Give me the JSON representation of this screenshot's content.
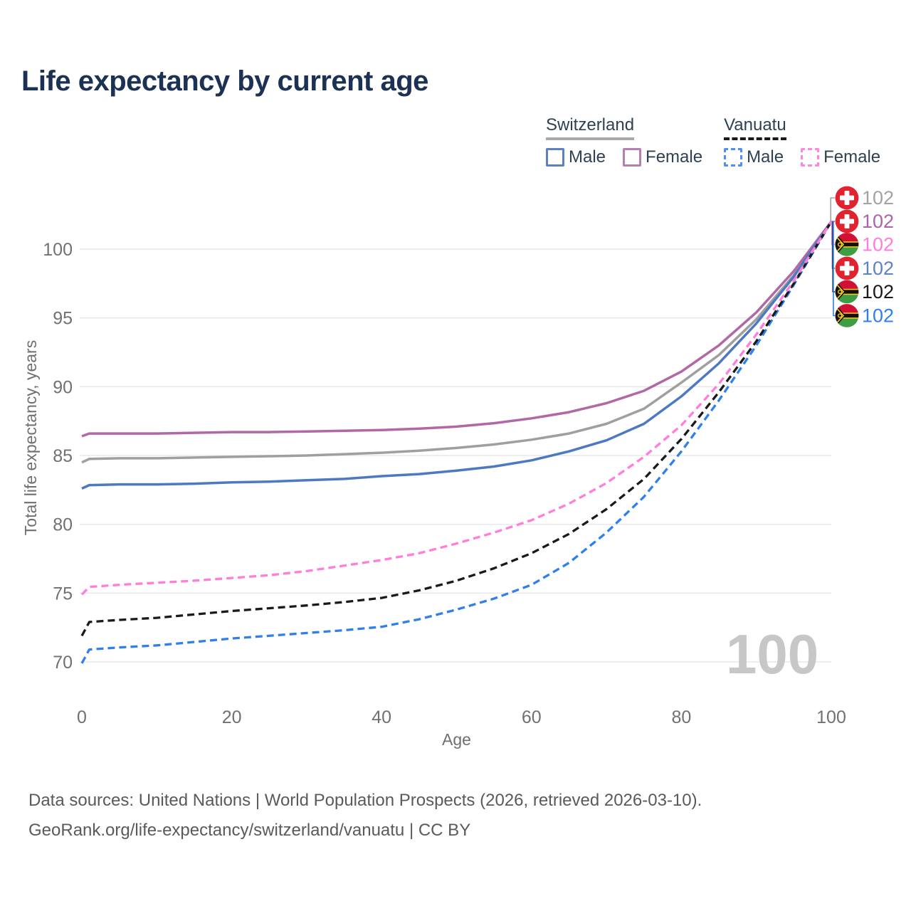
{
  "title": "Life expectancy by current age",
  "legend": {
    "groups": [
      {
        "name": "Switzerland",
        "line_style": "solid",
        "line_color": "#a9a9a9",
        "items": [
          {
            "label": "Male",
            "color": "#5c80c1",
            "style": "solid"
          },
          {
            "label": "Female",
            "color": "#b57fb0",
            "style": "solid"
          }
        ]
      },
      {
        "name": "Vanuatu",
        "line_style": "dashed",
        "line_color": "#1a1a1a",
        "items": [
          {
            "label": "Male",
            "color": "#4d8ef7",
            "style": "dashed"
          },
          {
            "label": "Female",
            "color": "#ff86df",
            "style": "dashed"
          }
        ]
      }
    ]
  },
  "chart_data": {
    "type": "line",
    "title": "Life expectancy by current age",
    "xlabel": "Age",
    "ylabel": "Total life expectancy, years",
    "xlim": [
      0,
      100
    ],
    "ylim": [
      69,
      103
    ],
    "xticks": [
      0,
      20,
      40,
      60,
      80,
      100
    ],
    "yticks": [
      70,
      75,
      80,
      85,
      90,
      95,
      100
    ],
    "grid": "horizontal light-gray gridlines",
    "legend_position": "top-right",
    "x": [
      0,
      1,
      5,
      10,
      15,
      20,
      25,
      30,
      35,
      40,
      45,
      50,
      55,
      60,
      65,
      70,
      75,
      80,
      85,
      90,
      95,
      100
    ],
    "series": [
      {
        "name": "Switzerland (both sexes)",
        "country": "Switzerland",
        "sex": "both",
        "flag": "ch",
        "color": "#9f9f9f",
        "label_color": "#a3a3a3",
        "dashed": false,
        "end_label": "102",
        "values": [
          84.5,
          84.75,
          84.8,
          84.8,
          84.85,
          84.9,
          84.95,
          85.0,
          85.1,
          85.2,
          85.35,
          85.55,
          85.8,
          86.15,
          86.6,
          87.3,
          88.4,
          90.3,
          92.3,
          94.9,
          98.1,
          102
        ]
      },
      {
        "name": "Switzerland Female",
        "country": "Switzerland",
        "sex": "female",
        "flag": "ch",
        "color": "#b168a5",
        "label_color": "#ad64a8",
        "dashed": false,
        "end_label": "102",
        "values": [
          86.4,
          86.6,
          86.6,
          86.6,
          86.65,
          86.7,
          86.7,
          86.75,
          86.8,
          86.85,
          86.95,
          87.1,
          87.35,
          87.7,
          88.15,
          88.8,
          89.7,
          91.1,
          93.0,
          95.4,
          98.4,
          102
        ]
      },
      {
        "name": "Vanuatu Female",
        "country": "Vanuatu",
        "sex": "female",
        "flag": "vu",
        "color": "#ff7edb",
        "label_color": "#ff7edb",
        "dashed": true,
        "end_label": "102",
        "values": [
          74.9,
          75.45,
          75.6,
          75.75,
          75.9,
          76.1,
          76.3,
          76.6,
          77.0,
          77.4,
          77.9,
          78.6,
          79.4,
          80.3,
          81.5,
          83.0,
          84.9,
          87.2,
          90.2,
          93.8,
          97.7,
          102
        ]
      },
      {
        "name": "Switzerland Male",
        "country": "Switzerland",
        "sex": "male",
        "flag": "ch",
        "color": "#4d79c0",
        "label_color": "#5c83c6",
        "dashed": false,
        "end_label": "102",
        "values": [
          82.6,
          82.85,
          82.9,
          82.9,
          82.95,
          83.05,
          83.1,
          83.2,
          83.3,
          83.5,
          83.65,
          83.9,
          84.2,
          84.65,
          85.3,
          86.1,
          87.3,
          89.3,
          91.7,
          94.6,
          98.0,
          102
        ]
      },
      {
        "name": "Vanuatu (both sexes)",
        "country": "Vanuatu",
        "sex": "both",
        "flag": "vu",
        "color": "#1a1a1a",
        "label_color": "#1a1a1a",
        "dashed": true,
        "end_label": "102",
        "values": [
          71.9,
          72.9,
          73.05,
          73.2,
          73.45,
          73.7,
          73.9,
          74.1,
          74.35,
          74.65,
          75.2,
          75.9,
          76.8,
          77.9,
          79.3,
          81.1,
          83.3,
          86.2,
          89.6,
          93.3,
          97.5,
          102
        ]
      },
      {
        "name": "Vanuatu Male",
        "country": "Vanuatu",
        "sex": "male",
        "flag": "vu",
        "color": "#2f80ea",
        "label_color": "#2f80ea",
        "dashed": true,
        "end_label": "102",
        "values": [
          69.9,
          70.9,
          71.05,
          71.2,
          71.45,
          71.7,
          71.9,
          72.1,
          72.3,
          72.55,
          73.1,
          73.8,
          74.6,
          75.6,
          77.2,
          79.4,
          82.0,
          85.3,
          89.0,
          93.0,
          97.4,
          102
        ]
      }
    ]
  },
  "age_counter": "100",
  "footer": {
    "line1": "Data sources: United Nations | World Population Prospects (2026, retrieved 2026-03-10).",
    "line2": "GeoRank.org/life-expectancy/switzerland/vanuatu | CC BY"
  }
}
